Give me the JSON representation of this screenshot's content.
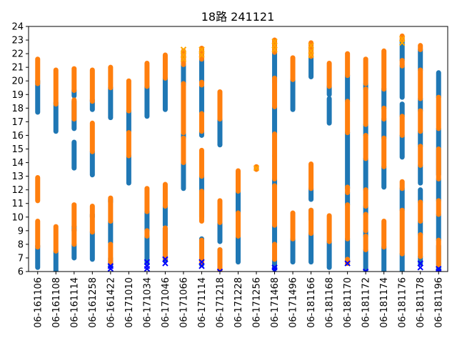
{
  "chart_data": {
    "type": "scatter",
    "title": "18路  241121",
    "xlabel": "",
    "ylabel": "",
    "categories": [
      "06-161106",
      "06-161108",
      "06-161114",
      "06-161258",
      "06-161422",
      "06-171010",
      "06-171034",
      "06-171046",
      "06-171066",
      "06-171114",
      "06-171218",
      "06-171228",
      "06-171256",
      "06-171468",
      "06-171496",
      "06-181166",
      "06-181168",
      "06-181170",
      "06-181172",
      "06-181174",
      "06-181176",
      "06-181178",
      "06-181196"
    ],
    "ylim": [
      6,
      24
    ],
    "yticks": [
      6,
      7,
      8,
      9,
      10,
      11,
      12,
      13,
      14,
      15,
      16,
      17,
      18,
      19,
      20,
      21,
      22,
      23,
      24
    ],
    "grid": false,
    "legend": "none",
    "colors": {
      "blue": "#1f77b4",
      "orange": "#ff7f0e",
      "marker_blue": "#0000ff",
      "marker_orange": "#ffa500"
    },
    "series": [
      {
        "color": "blue",
        "segments": [
          [
            [
              17.7,
              20.0
            ],
            [
              6.3,
              7.9
            ]
          ],
          [
            [
              16.3,
              18.4
            ],
            [
              6.0,
              7.5
            ]
          ],
          [
            [
              13.6,
              15.5
            ],
            [
              16.5,
              18.5
            ],
            [
              18.9,
              19.3
            ],
            [
              7.0,
              8.0
            ],
            [
              9.0,
              9.3
            ]
          ],
          [
            [
              13.1,
              14.8
            ],
            [
              17.9,
              18.6
            ],
            [
              6.9,
              8.9
            ],
            [
              10.0,
              10.2
            ]
          ],
          [
            [
              17.3,
              19.5
            ],
            [
              6.4,
              7.0
            ],
            [
              8.1,
              9.7
            ],
            [
              11.1,
              11.3
            ]
          ],
          [
            [
              12.5,
              14.5
            ],
            [
              16.3,
              17.8
            ]
          ],
          [
            [
              17.4,
              19.6
            ],
            [
              6.6,
              8.6
            ],
            [
              9.0,
              10.4
            ]
          ],
          [
            [
              17.9,
              20.2
            ],
            [
              6.8,
              9.2
            ],
            [
              9.4,
              10.8
            ]
          ],
          [
            [
              12.1,
              14.0
            ],
            [
              15.8,
              16.1
            ],
            [
              19.7,
              21.2
            ]
          ],
          [
            [
              16.0,
              16.3
            ],
            [
              17.7,
              19.6
            ],
            [
              19.9,
              21.6
            ],
            [
              6.5,
              8.4
            ],
            [
              10.0,
              13.0
            ]
          ],
          [
            [
              15.3,
              17.2
            ],
            [
              6.0,
              7.6
            ],
            [
              8.2,
              9.6
            ]
          ],
          [
            [
              6.7,
              8.6
            ],
            [
              10.3,
              11.9
            ]
          ],
          [],
          [
            [
              16.1,
              18.1
            ],
            [
              19.9,
              22.1
            ],
            [
              6.2,
              6.9
            ],
            [
              8.1,
              9.4
            ],
            [
              12.3,
              12.8
            ]
          ],
          [
            [
              17.9,
              20.1
            ],
            [
              6.7,
              8.4
            ]
          ],
          [
            [
              20.3,
              21.8
            ],
            [
              6.7,
              8.8
            ],
            [
              9.8,
              10.5
            ],
            [
              11.3,
              12.1
            ]
          ],
          [
            [
              16.9,
              18.7
            ],
            [
              19.0,
              19.6
            ],
            [
              6.3,
              8.2
            ]
          ],
          [
            [
              12.1,
              16.2
            ],
            [
              18.5,
              20.4
            ],
            [
              6.6,
              8.4
            ],
            [
              10.9,
              11.8
            ]
          ],
          [
            [
              12.0,
              14.3
            ],
            [
              16.0,
              16.8
            ],
            [
              19.4,
              19.8
            ],
            [
              6.0,
              7.6
            ],
            [
              8.6,
              9.0
            ],
            [
              10.2,
              10.8
            ]
          ],
          [
            [
              12.2,
              13.7
            ],
            [
              15.8,
              17.2
            ],
            [
              18.0,
              19.4
            ],
            [
              6.0,
              7.8
            ]
          ],
          [
            [
              14.4,
              16.0
            ],
            [
              17.4,
              18.3
            ],
            [
              18.8,
              21.1
            ],
            [
              21.5,
              23.0
            ],
            [
              6.0,
              7.3
            ],
            [
              10.5,
              12.1
            ]
          ],
          [
            [
              12.5,
              13.8
            ],
            [
              15.2,
              16.3
            ],
            [
              17.8,
              18.7
            ],
            [
              20.8,
              22.3
            ],
            [
              6.6,
              7.1
            ],
            [
              8.7,
              9.7
            ],
            [
              11.1,
              12.0
            ]
          ],
          [
            [
              13.1,
              16.5
            ],
            [
              18.8,
              20.6
            ],
            [
              6.1,
              7.9
            ],
            [
              8.3,
              10.2
            ],
            [
              11.2,
              12.8
            ]
          ]
        ]
      },
      {
        "color": "orange",
        "segments": [
          [
            [
              19.8,
              21.6
            ],
            [
              7.8,
              9.7
            ],
            [
              11.2,
              12.9
            ]
          ],
          [
            [
              18.3,
              20.8
            ],
            [
              7.5,
              9.3
            ]
          ],
          [
            [
              17.2,
              18.6
            ],
            [
              19.3,
              20.9
            ],
            [
              8.0,
              9.1
            ],
            [
              9.3,
              10.9
            ]
          ],
          [
            [
              14.8,
              16.9
            ],
            [
              18.5,
              20.8
            ],
            [
              8.9,
              10.8
            ]
          ],
          [
            [
              19.5,
              21.0
            ],
            [
              6.6,
              8.0
            ],
            [
              9.7,
              11.4
            ]
          ],
          [
            [
              14.5,
              16.2
            ],
            [
              17.8,
              20.0
            ]
          ],
          [
            [
              19.6,
              21.3
            ],
            [
              8.6,
              9.0
            ],
            [
              10.4,
              12.1
            ]
          ],
          [
            [
              20.2,
              21.9
            ],
            [
              7.0,
              9.2
            ],
            [
              10.8,
              12.4
            ]
          ],
          [
            [
              14.0,
              15.8
            ],
            [
              16.2,
              19.8
            ],
            [
              21.2,
              22.2
            ]
          ],
          [
            [
              13.0,
              14.9
            ],
            [
              16.3,
              17.6
            ],
            [
              19.7,
              19.9
            ],
            [
              21.6,
              22.4
            ],
            [
              6.7,
              8.3
            ],
            [
              9.7,
              11.9
            ]
          ],
          [
            [
              17.2,
              19.2
            ],
            [
              6.0,
              7.6
            ],
            [
              9.6,
              11.2
            ]
          ],
          [
            [
              11.9,
              13.4
            ],
            [
              8.6,
              10.3
            ]
          ],
          [
            [
              13.5,
              13.7
            ]
          ],
          [
            [
              14.5,
              16.1
            ],
            [
              18.1,
              20.2
            ],
            [
              22.1,
              23.0
            ],
            [
              6.9,
              8.0
            ],
            [
              9.4,
              12.3
            ],
            [
              12.8,
              14.5
            ]
          ],
          [
            [
              20.1,
              21.7
            ],
            [
              8.4,
              10.3
            ]
          ],
          [
            [
              21.8,
              22.8
            ],
            [
              8.8,
              10.5
            ],
            [
              12.1,
              13.9
            ]
          ],
          [
            [
              19.6,
              21.3
            ],
            [
              8.2,
              10.1
            ]
          ],
          [
            [
              16.2,
              18.5
            ],
            [
              20.4,
              22.0
            ],
            [
              6.6,
              6.9
            ],
            [
              8.4,
              10.9
            ],
            [
              11.8,
              12.2
            ]
          ],
          [
            [
              14.3,
              16.0
            ],
            [
              16.8,
              19.4
            ],
            [
              19.8,
              21.6
            ],
            [
              7.6,
              8.6
            ],
            [
              9.0,
              10.2
            ],
            [
              10.8,
              12.0
            ]
          ],
          [
            [
              13.7,
              15.8
            ],
            [
              17.2,
              18.0
            ],
            [
              19.4,
              22.2
            ],
            [
              7.8,
              9.7
            ]
          ],
          [
            [
              16.0,
              17.4
            ],
            [
              21.1,
              21.5
            ],
            [
              23.0,
              23.3
            ],
            [
              7.3,
              10.5
            ],
            [
              12.1,
              12.6
            ]
          ],
          [
            [
              13.8,
              15.2
            ],
            [
              16.3,
              17.8
            ],
            [
              18.7,
              20.8
            ],
            [
              22.3,
              22.6
            ],
            [
              7.1,
              8.7
            ],
            [
              9.7,
              11.1
            ]
          ],
          [
            [
              16.5,
              18.8
            ],
            [
              6.5,
              8.3
            ],
            [
              10.2,
              11.2
            ],
            [
              12.8,
              15.0
            ]
          ]
        ]
      }
    ],
    "markers": [
      {
        "category": "06-161422",
        "color": "marker_blue",
        "values": [
          6.2,
          6.4
        ]
      },
      {
        "category": "06-171034",
        "color": "marker_blue",
        "values": [
          6.2,
          6.4,
          6.7
        ]
      },
      {
        "category": "06-171046",
        "color": "marker_blue",
        "values": [
          6.6,
          6.9
        ]
      },
      {
        "category": "06-171066",
        "color": "marker_orange",
        "values": [
          21.6,
          21.9,
          22.3
        ]
      },
      {
        "category": "06-171114",
        "color": "marker_blue",
        "values": [
          6.4,
          6.7
        ]
      },
      {
        "category": "06-171114",
        "color": "marker_orange",
        "values": [
          21.9,
          22.3
        ]
      },
      {
        "category": "06-171218",
        "color": "marker_blue",
        "values": [
          6.0
        ]
      },
      {
        "category": "06-171256",
        "color": "marker_orange",
        "values": [
          13.6
        ]
      },
      {
        "category": "06-171468",
        "color": "marker_blue",
        "values": [
          6.1,
          6.3
        ]
      },
      {
        "category": "06-171468",
        "color": "marker_orange",
        "values": [
          22.3,
          22.6,
          22.9
        ]
      },
      {
        "category": "06-181166",
        "color": "marker_orange",
        "values": [
          21.9,
          22.2,
          22.6
        ]
      },
      {
        "category": "06-181170",
        "color": "marker_blue",
        "values": [
          6.6
        ]
      },
      {
        "category": "06-181172",
        "color": "marker_blue",
        "values": [
          6.0
        ]
      },
      {
        "category": "06-181176",
        "color": "marker_orange",
        "values": [
          22.8,
          23.1
        ]
      },
      {
        "category": "06-181178",
        "color": "marker_blue",
        "values": [
          6.3,
          6.6
        ]
      },
      {
        "category": "06-181196",
        "color": "marker_blue",
        "values": [
          6.0,
          6.2
        ]
      }
    ]
  }
}
